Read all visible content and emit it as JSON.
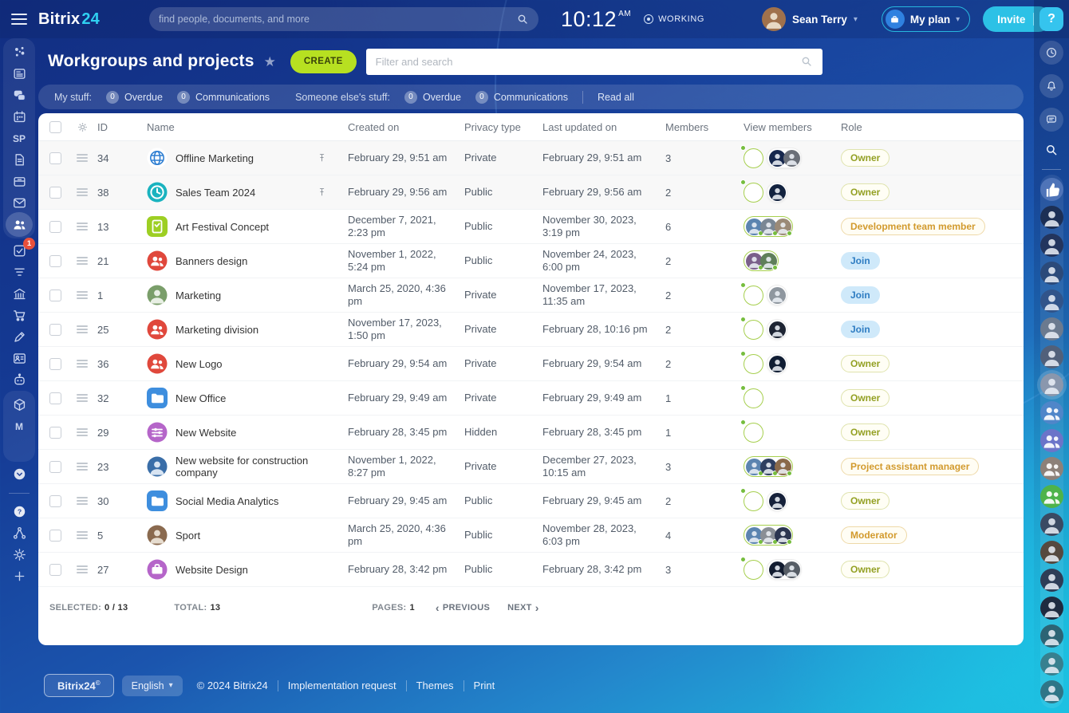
{
  "topbar": {
    "logo_bitrix": "Bitrix",
    "logo_24": "24",
    "search_placeholder": "find people, documents, and more",
    "time": "10:12",
    "time_suffix": "AM",
    "status": "WORKING",
    "user_name": "Sean Terry",
    "my_plan_label": "My plan",
    "invite_label": "Invite",
    "help_label": "?"
  },
  "header": {
    "title": "Workgroups and projects",
    "star_icon": "star",
    "create_label": "CREATE",
    "filter_placeholder": "Filter and search"
  },
  "counter_bar": {
    "my_stuff_label": "My stuff:",
    "someone_label": "Someone else's stuff:",
    "my_chips": [
      {
        "count": "0",
        "label": "Overdue"
      },
      {
        "count": "0",
        "label": "Communications"
      }
    ],
    "someone_chips": [
      {
        "count": "0",
        "label": "Overdue"
      },
      {
        "count": "0",
        "label": "Communications"
      }
    ],
    "read_all_label": "Read all"
  },
  "table": {
    "headers": {
      "id": "ID",
      "name": "Name",
      "created": "Created on",
      "privacy": "Privacy type",
      "updated": "Last updated on",
      "members": "Members",
      "view": "View members",
      "role": "Role"
    },
    "rows": [
      {
        "id": "34",
        "name": "Offline Marketing",
        "pinned": true,
        "created": "February 29, 9:51 am",
        "privacy": "Private",
        "updated": "February 29, 9:51 am",
        "members": "3",
        "icon": {
          "glyph": "sphere",
          "shape": "circle",
          "bg": "#ffffff",
          "fg": "#2f7fd2"
        },
        "view": {
          "green": [
            "#a0714c"
          ],
          "plain": [
            "#16274d",
            "#6a6f78"
          ]
        },
        "role": {
          "label": "Owner",
          "style": "owner"
        }
      },
      {
        "id": "38",
        "name": "Sales Team 2024",
        "pinned": true,
        "created": "February 29, 9:56 am",
        "privacy": "Public",
        "updated": "February 29, 9:56 am",
        "members": "2",
        "icon": {
          "glyph": "clock",
          "shape": "circle",
          "bg": "#1ab3bf",
          "fg": "#ffffff"
        },
        "view": {
          "green": [
            "#a0714c"
          ],
          "plain": [
            "#12223f"
          ]
        },
        "role": {
          "label": "Owner",
          "style": "owner"
        }
      },
      {
        "id": "13",
        "name": "Art Festival Concept",
        "pinned": false,
        "created": "December 7, 2021, 2:23 pm",
        "privacy": "Public",
        "updated": "November 30, 2023, 3:19 pm",
        "members": "6",
        "icon": {
          "glyph": "board",
          "shape": "square",
          "bg": "#9dcf23",
          "fg": "#ffffff"
        },
        "view": {
          "green": [
            "#5b84b0",
            "#7a8794",
            "#9b8a77"
          ],
          "plain": []
        },
        "role": {
          "label": "Development team member",
          "style": "orange"
        }
      },
      {
        "id": "21",
        "name": "Banners design",
        "pinned": false,
        "created": "November 1, 2022, 5:24 pm",
        "privacy": "Public",
        "updated": "November 24, 2023, 6:00 pm",
        "members": "2",
        "icon": {
          "glyph": "people",
          "shape": "circle",
          "bg": "#e0483c",
          "fg": "#ffffff"
        },
        "view": {
          "green": [
            "#7a5f8a",
            "#5f7f5a"
          ],
          "plain": []
        },
        "role": {
          "label": "Join",
          "style": "join"
        }
      },
      {
        "id": "1",
        "name": "Marketing",
        "pinned": false,
        "created": "March 25, 2020, 4:36 pm",
        "privacy": "Private",
        "updated": "November 17, 2023, 11:35 am",
        "members": "2",
        "icon": {
          "glyph": "photo",
          "shape": "circle",
          "bg": "#7a9e6a",
          "fg": "#e8efe4"
        },
        "view": {
          "green": [
            "#5b84b0"
          ],
          "plain": [
            "#8f979f"
          ]
        },
        "role": {
          "label": "Join",
          "style": "join"
        }
      },
      {
        "id": "25",
        "name": "Marketing division",
        "pinned": false,
        "created": "November 17, 2023, 1:50 pm",
        "privacy": "Private",
        "updated": "February 28, 10:16 pm",
        "members": "2",
        "icon": {
          "glyph": "people",
          "shape": "circle",
          "bg": "#e0483c",
          "fg": "#ffffff"
        },
        "view": {
          "green": [
            "#6f5a7a"
          ],
          "plain": [
            "#1d2433"
          ]
        },
        "role": {
          "label": "Join",
          "style": "join"
        }
      },
      {
        "id": "36",
        "name": "New Logo",
        "pinned": false,
        "created": "February 29, 9:54 am",
        "privacy": "Private",
        "updated": "February 29, 9:54 am",
        "members": "2",
        "icon": {
          "glyph": "people",
          "shape": "circle",
          "bg": "#e0483c",
          "fg": "#ffffff"
        },
        "view": {
          "green": [
            "#a0714c"
          ],
          "plain": [
            "#101d33"
          ]
        },
        "role": {
          "label": "Owner",
          "style": "owner"
        }
      },
      {
        "id": "32",
        "name": "New Office",
        "pinned": false,
        "created": "February 29, 9:49 am",
        "privacy": "Private",
        "updated": "February 29, 9:49 am",
        "members": "1",
        "icon": {
          "glyph": "folder",
          "shape": "square",
          "bg": "#3e8ede",
          "fg": "#ffffff"
        },
        "view": {
          "green": [
            "#a0714c"
          ],
          "plain": []
        },
        "role": {
          "label": "Owner",
          "style": "owner"
        }
      },
      {
        "id": "29",
        "name": "New Website",
        "pinned": false,
        "created": "February 28, 3:45 pm",
        "privacy": "Hidden",
        "updated": "February 28, 3:45 pm",
        "members": "1",
        "icon": {
          "glyph": "sliders",
          "shape": "circle",
          "bg": "#b565c9",
          "fg": "#ffffff"
        },
        "view": {
          "green": [
            "#a0714c"
          ],
          "plain": []
        },
        "role": {
          "label": "Owner",
          "style": "owner"
        }
      },
      {
        "id": "23",
        "name": "New website for construction company",
        "pinned": false,
        "created": "November 1, 2022, 8:27 pm",
        "privacy": "Private",
        "updated": "December 27, 2023, 10:15 am",
        "members": "3",
        "icon": {
          "glyph": "photo",
          "shape": "circle",
          "bg": "#3a6ea8",
          "fg": "#d8e4f2"
        },
        "view": {
          "green": [
            "#5b84b0",
            "#2e3f60",
            "#8a6a4a"
          ],
          "plain": []
        },
        "role": {
          "label": "Project assistant manager",
          "style": "orange"
        }
      },
      {
        "id": "30",
        "name": "Social Media Analytics",
        "pinned": false,
        "created": "February 29, 9:45 am",
        "privacy": "Public",
        "updated": "February 29, 9:45 am",
        "members": "2",
        "icon": {
          "glyph": "folder",
          "shape": "square",
          "bg": "#3e8ede",
          "fg": "#ffffff"
        },
        "view": {
          "green": [
            "#a0714c"
          ],
          "plain": [
            "#16213a"
          ]
        },
        "role": {
          "label": "Owner",
          "style": "owner"
        }
      },
      {
        "id": "5",
        "name": "Sport",
        "pinned": false,
        "created": "March 25, 2020, 4:36 pm",
        "privacy": "Public",
        "updated": "November 28, 2023, 6:03 pm",
        "members": "4",
        "icon": {
          "glyph": "photo",
          "shape": "circle",
          "bg": "#8a6a4f",
          "fg": "#e6dccf"
        },
        "view": {
          "green": [
            "#5b84b0",
            "#8a8f96",
            "#2b3550"
          ],
          "plain": []
        },
        "role": {
          "label": "Moderator",
          "style": "orange"
        }
      },
      {
        "id": "27",
        "name": "Website Design",
        "pinned": false,
        "created": "February 28, 3:42 pm",
        "privacy": "Public",
        "updated": "February 28, 3:42 pm",
        "members": "3",
        "icon": {
          "glyph": "briefcase",
          "shape": "circle",
          "bg": "#b565c9",
          "fg": "#ffffff"
        },
        "view": {
          "green": [
            "#8a6a4a"
          ],
          "plain": [
            "#121c30",
            "#565d66"
          ]
        },
        "role": {
          "label": "Owner",
          "style": "owner"
        }
      }
    ]
  },
  "pagination": {
    "selected_label": "SELECTED:",
    "selected_value": "0 / 13",
    "total_label": "TOTAL:",
    "total_value": "13",
    "pages_label": "PAGES:",
    "pages_value": "1",
    "prev_label": "PREVIOUS",
    "next_label": "NEXT"
  },
  "footer": {
    "brand": "Bitrix24",
    "brand_sup": "©",
    "language": "English",
    "copyright": "© 2024 Bitrix24",
    "links": [
      "Implementation request",
      "Themes",
      "Print"
    ]
  },
  "left_sidebar": {
    "items": [
      {
        "name": "live-feed",
        "group": 1
      },
      {
        "name": "newsfeed",
        "group": 1
      },
      {
        "name": "messenger",
        "group": 1
      },
      {
        "name": "calendar",
        "group": 1
      },
      {
        "name": "spaces",
        "text": "SP",
        "group": 1
      },
      {
        "name": "documents",
        "group": 1
      },
      {
        "name": "drive",
        "group": 1
      },
      {
        "name": "mail",
        "group": 1
      },
      {
        "name": "workgroups",
        "group": 1,
        "active": true
      },
      {
        "name": "tasks",
        "badge": "1"
      },
      {
        "name": "crm"
      },
      {
        "name": "company"
      },
      {
        "name": "store"
      },
      {
        "name": "sign"
      },
      {
        "name": "hr"
      },
      {
        "name": "copilot"
      },
      {
        "name": "catalog",
        "group": 2
      },
      {
        "name": "market",
        "text": "M",
        "group": 2
      },
      {
        "name": "devops",
        "text": "</>",
        "group": 2
      },
      {
        "name": "expand"
      },
      {
        "name": "support",
        "section": "bottom"
      },
      {
        "name": "structure",
        "section": "bottom"
      },
      {
        "name": "settings",
        "section": "bottom"
      },
      {
        "name": "add",
        "section": "bottom"
      }
    ]
  },
  "right_rail": {
    "buttons": [
      {
        "name": "history"
      },
      {
        "name": "notifications"
      },
      {
        "name": "messenger-panel"
      }
    ],
    "avatars": [
      {
        "type": "reaction",
        "name": "thumbs-up",
        "c": "#4f74b8"
      },
      {
        "type": "person",
        "c": "#1c2f55"
      },
      {
        "type": "person",
        "c": "#23355e"
      },
      {
        "type": "person",
        "c": "#2b4a7a"
      },
      {
        "type": "person",
        "c": "#31548a"
      },
      {
        "type": "person",
        "c": "#6b7a8f"
      },
      {
        "type": "person",
        "c": "#51607a"
      },
      {
        "type": "person",
        "c": "#8a97ad",
        "highlight": true
      },
      {
        "type": "group",
        "c": "#4f86c9"
      },
      {
        "type": "group",
        "c": "#6b74c9"
      },
      {
        "type": "group",
        "c": "#8d8179"
      },
      {
        "type": "group",
        "c": "#4eb34a"
      },
      {
        "type": "person",
        "c": "#3a4a63"
      },
      {
        "type": "person",
        "c": "#56493f"
      },
      {
        "type": "person",
        "c": "#2e3d57"
      },
      {
        "type": "person",
        "c": "#1f2b40"
      },
      {
        "type": "person",
        "c": "#2c6475"
      },
      {
        "type": "person",
        "c": "#37808f"
      },
      {
        "type": "person",
        "c": "#2f7587"
      }
    ]
  },
  "colors": {
    "accent_cyan": "#2cc1e6",
    "create_lime": "#b7e021",
    "owner_olive": "#93a023",
    "role_orange": "#d29a2d",
    "join_blue": "#2e7cc2",
    "badge_red": "#e8503c",
    "member_green": "#a6cf4e"
  }
}
